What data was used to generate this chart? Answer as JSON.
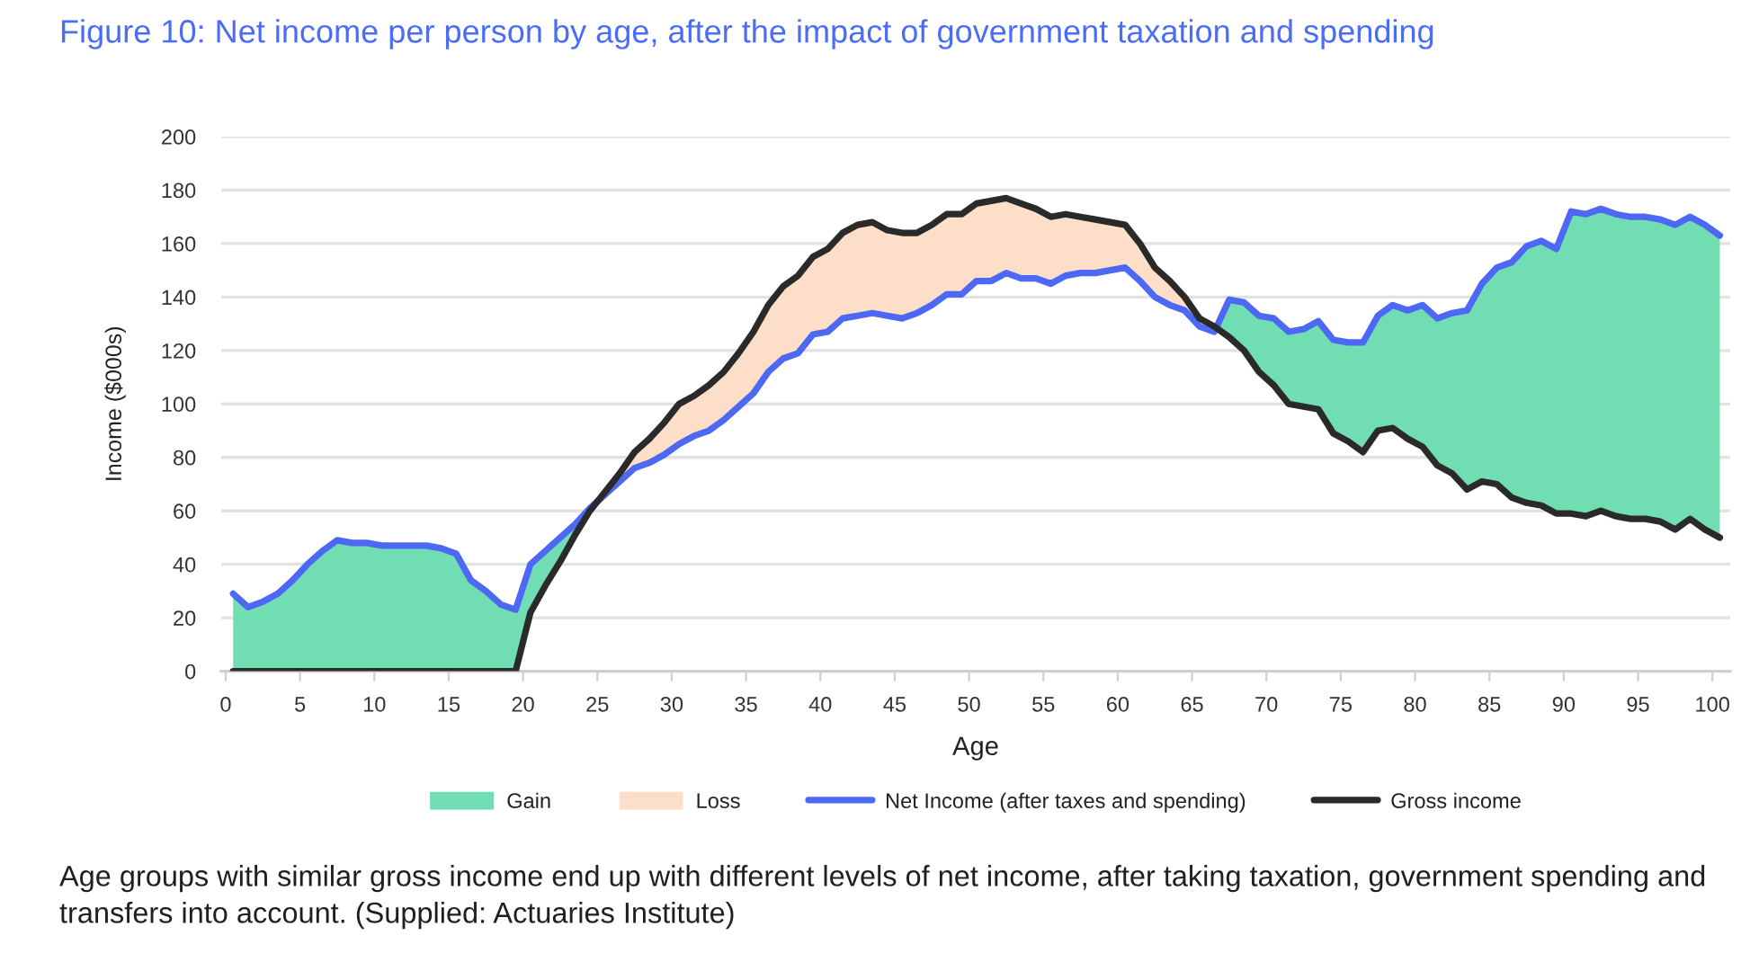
{
  "chart_data": {
    "type": "line",
    "title": "Figure 10: Net income per person by age, after the impact of government taxation and spending",
    "xlabel": "Age",
    "ylabel": "Income ($000s)",
    "annotations": [
      "Age groups with similar gross income end up with different levels of net income, after taking taxation, government spending and transfers into account. (Supplied: Actuaries Institute)"
    ],
    "x": [
      0.5,
      1.5,
      2.5,
      3.5,
      4.5,
      5.5,
      6.5,
      7.5,
      8.5,
      9.5,
      10.5,
      11.5,
      12.5,
      13.5,
      14.5,
      15.5,
      16.5,
      17.5,
      18.5,
      19.5,
      20.5,
      21.5,
      22.5,
      23.5,
      24.5,
      25.5,
      26.5,
      27.5,
      28.5,
      29.5,
      30.5,
      31.5,
      32.5,
      33.5,
      34.5,
      35.5,
      36.5,
      37.5,
      38.5,
      39.5,
      40.5,
      41.5,
      42.5,
      43.5,
      44.5,
      45.5,
      46.5,
      47.5,
      48.5,
      49.5,
      50.5,
      51.5,
      52.5,
      53.5,
      54.5,
      55.5,
      56.5,
      57.5,
      58.5,
      59.5,
      60.5,
      61.5,
      62.5,
      63.5,
      64.5,
      65.5,
      66.5,
      67.5,
      68.5,
      69.5,
      70.5,
      71.5,
      72.5,
      73.5,
      74.5,
      75.5,
      76.5,
      77.5,
      78.5,
      79.5,
      80.5,
      81.5,
      82.5,
      83.5,
      84.5,
      85.5,
      86.5,
      87.5,
      88.5,
      89.5,
      90.5,
      91.5,
      92.5,
      93.5,
      94.5,
      95.5,
      96.5,
      97.5,
      98.5,
      99.5,
      100.5
    ],
    "series": [
      {
        "name": "Gain",
        "type": "area",
        "color": "#70deb2",
        "values": [
          null,
          null,
          null,
          null,
          null,
          null,
          null,
          null,
          null,
          null,
          null,
          null,
          null,
          null,
          null,
          null,
          null,
          null,
          null,
          null,
          null,
          null,
          null,
          null,
          null,
          null,
          null,
          null,
          null,
          null,
          null,
          null,
          null,
          null,
          null,
          null,
          null,
          null,
          null,
          null,
          null,
          null,
          null,
          null,
          null,
          null,
          null,
          null,
          null,
          null,
          null,
          null,
          null,
          null,
          null,
          null,
          null,
          null,
          null,
          null,
          null,
          null,
          null,
          null,
          null,
          null,
          null,
          null,
          null,
          null,
          null,
          null,
          null,
          null,
          null,
          null,
          null,
          null,
          null,
          null,
          null,
          null,
          null,
          null,
          null,
          null,
          null,
          null,
          null,
          null,
          null,
          null,
          null,
          null,
          null,
          null,
          null,
          null,
          null,
          null,
          null
        ],
        "lower": [
          0,
          0,
          0,
          0,
          0,
          0,
          0,
          0,
          0,
          0,
          0,
          0,
          0,
          0,
          0,
          0,
          0,
          0,
          0,
          0,
          22,
          32,
          41,
          51,
          60,
          null,
          null,
          null,
          null,
          null,
          null,
          null,
          null,
          null,
          null,
          null,
          null,
          null,
          null,
          null,
          null,
          null,
          null,
          null,
          null,
          null,
          null,
          null,
          null,
          null,
          null,
          null,
          null,
          null,
          null,
          null,
          null,
          null,
          null,
          null,
          null,
          null,
          null,
          null,
          null,
          null,
          129,
          125,
          120,
          112,
          107,
          100,
          99,
          98,
          89,
          86,
          82,
          90,
          91,
          87,
          84,
          77,
          74,
          68,
          71,
          70,
          65,
          63,
          62,
          59,
          59,
          58,
          60,
          58,
          57,
          57,
          56,
          53,
          57,
          53,
          50
        ],
        "upper": [
          29,
          24,
          26,
          29,
          34,
          40,
          45,
          49,
          48,
          48,
          47,
          47,
          47,
          47,
          46,
          44,
          34,
          30,
          25,
          23,
          40,
          45,
          50,
          55,
          61,
          null,
          null,
          null,
          null,
          null,
          null,
          null,
          null,
          null,
          null,
          null,
          null,
          null,
          null,
          null,
          null,
          null,
          null,
          null,
          null,
          null,
          null,
          null,
          null,
          null,
          null,
          null,
          null,
          null,
          null,
          null,
          null,
          null,
          null,
          null,
          null,
          null,
          null,
          null,
          null,
          null,
          127,
          139,
          138,
          133,
          132,
          127,
          128,
          131,
          124,
          123,
          123,
          133,
          137,
          135,
          137,
          132,
          134,
          135,
          145,
          151,
          153,
          159,
          161,
          158,
          172,
          171,
          173,
          171,
          170,
          170,
          169,
          167,
          170,
          167,
          163
        ]
      },
      {
        "name": "Loss",
        "type": "area",
        "color": "#fddec8",
        "values": [
          null,
          null,
          null,
          null,
          null,
          null,
          null,
          null,
          null,
          null,
          null,
          null,
          null,
          null,
          null,
          null,
          null,
          null,
          null,
          null,
          null,
          null,
          null,
          null,
          null,
          null,
          null,
          null,
          null,
          null,
          null,
          null,
          null,
          null,
          null,
          null,
          null,
          null,
          null,
          null,
          null,
          null,
          null,
          null,
          null,
          null,
          null,
          null,
          null,
          null,
          null,
          null,
          null,
          null,
          null,
          null,
          null,
          null,
          null,
          null,
          null,
          null,
          null,
          null,
          null,
          null,
          null,
          null,
          null,
          null,
          null,
          null,
          null,
          null,
          null,
          null,
          null,
          null,
          null,
          null,
          null,
          null,
          null,
          null,
          null,
          null,
          null,
          null,
          null,
          null,
          null,
          null,
          null,
          null,
          null,
          null,
          null,
          null,
          null,
          null,
          null
        ],
        "lower": [
          null,
          null,
          null,
          null,
          null,
          null,
          null,
          null,
          null,
          null,
          null,
          null,
          null,
          null,
          null,
          null,
          null,
          null,
          null,
          null,
          null,
          null,
          null,
          null,
          61,
          66,
          71,
          76,
          78,
          81,
          85,
          88,
          90,
          94,
          99,
          104,
          112,
          117,
          119,
          126,
          127,
          132,
          133,
          134,
          133,
          132,
          134,
          137,
          141,
          141,
          146,
          146,
          149,
          147,
          147,
          145,
          148,
          149,
          149,
          150,
          151,
          146,
          140,
          137,
          135,
          129,
          127,
          null,
          null,
          null,
          null,
          null,
          null,
          null,
          null,
          null,
          null,
          null,
          null,
          null,
          null,
          null,
          null,
          null,
          null,
          null,
          null,
          null,
          null,
          null,
          null,
          null,
          null,
          null,
          null,
          null,
          null,
          null,
          null,
          null,
          null
        ],
        "upper": [
          null,
          null,
          null,
          null,
          null,
          null,
          null,
          null,
          null,
          null,
          null,
          null,
          null,
          null,
          null,
          null,
          null,
          null,
          null,
          null,
          null,
          null,
          null,
          null,
          60,
          67,
          74,
          82,
          87,
          93,
          100,
          103,
          107,
          112,
          119,
          127,
          137,
          144,
          148,
          155,
          158,
          164,
          167,
          168,
          165,
          164,
          164,
          167,
          171,
          171,
          175,
          176,
          177,
          175,
          173,
          170,
          171,
          170,
          169,
          168,
          167,
          160,
          151,
          146,
          140,
          132,
          129,
          null,
          null,
          null,
          null,
          null,
          null,
          null,
          null,
          null,
          null,
          null,
          null,
          null,
          null,
          null,
          null,
          null,
          null,
          null,
          null,
          null,
          null,
          null,
          null,
          null,
          null,
          null,
          null,
          null,
          null,
          null,
          null,
          null,
          null
        ]
      },
      {
        "name": "Net Income (after taxes and spending)",
        "color": "#4d68f5",
        "values": [
          29,
          24,
          26,
          29,
          34,
          40,
          45,
          49,
          48,
          48,
          47,
          47,
          47,
          47,
          46,
          44,
          34,
          30,
          25,
          23,
          40,
          45,
          50,
          55,
          61,
          66,
          71,
          76,
          78,
          81,
          85,
          88,
          90,
          94,
          99,
          104,
          112,
          117,
          119,
          126,
          127,
          132,
          133,
          134,
          133,
          132,
          134,
          137,
          141,
          141,
          146,
          146,
          149,
          147,
          147,
          145,
          148,
          149,
          149,
          150,
          151,
          146,
          140,
          137,
          135,
          129,
          127,
          139,
          138,
          133,
          132,
          127,
          128,
          131,
          124,
          123,
          123,
          133,
          137,
          135,
          137,
          132,
          134,
          135,
          145,
          151,
          153,
          159,
          161,
          158,
          172,
          171,
          173,
          171,
          170,
          170,
          169,
          167,
          170,
          167,
          163
        ]
      },
      {
        "name": "Gross income",
        "color": "#2a2a2a",
        "values": [
          0,
          0,
          0,
          0,
          0,
          0,
          0,
          0,
          0,
          0,
          0,
          0,
          0,
          0,
          0,
          0,
          0,
          0,
          0,
          0,
          22,
          32,
          41,
          51,
          60,
          67,
          74,
          82,
          87,
          93,
          100,
          103,
          107,
          112,
          119,
          127,
          137,
          144,
          148,
          155,
          158,
          164,
          167,
          168,
          165,
          164,
          164,
          167,
          171,
          171,
          175,
          176,
          177,
          175,
          173,
          170,
          171,
          170,
          169,
          168,
          167,
          160,
          151,
          146,
          140,
          132,
          129,
          125,
          120,
          112,
          107,
          100,
          99,
          98,
          89,
          86,
          82,
          90,
          91,
          87,
          84,
          77,
          74,
          68,
          71,
          70,
          65,
          63,
          62,
          59,
          59,
          58,
          60,
          58,
          57,
          57,
          56,
          53,
          57,
          53,
          50
        ]
      }
    ],
    "xlim": [
      -0.3,
      101.2
    ],
    "ylim": [
      0,
      200
    ],
    "xticks": [
      0,
      5,
      10,
      15,
      20,
      25,
      30,
      35,
      40,
      45,
      50,
      55,
      60,
      65,
      70,
      75,
      80,
      85,
      90,
      95,
      100
    ],
    "yticks": [
      0,
      20,
      40,
      60,
      80,
      100,
      120,
      140,
      160,
      180,
      200
    ],
    "grid": "y",
    "legend": "bottom",
    "marker": "none",
    "line_style": "solid"
  }
}
